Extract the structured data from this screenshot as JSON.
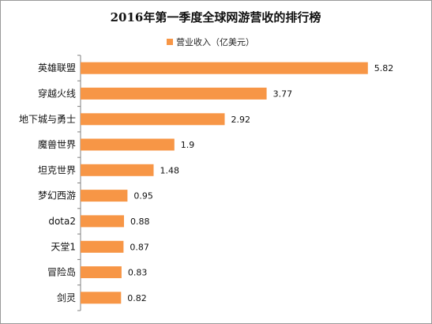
{
  "chart_data": {
    "type": "bar",
    "orientation": "horizontal",
    "title": "2016年第一季度全球网游营收的排行榜",
    "legend_position": "top",
    "series": [
      {
        "name": "营业收入（亿美元）",
        "color": "#F79646",
        "values": [
          5.82,
          3.77,
          2.92,
          1.9,
          1.48,
          0.95,
          0.88,
          0.87,
          0.83,
          0.82
        ]
      }
    ],
    "categories": [
      "英雄联盟",
      "穿越火线",
      "地下城与勇士",
      "魔兽世界",
      "坦克世界",
      "梦幻西游",
      "dota2",
      "天堂1",
      "冒险岛",
      "剑灵"
    ],
    "value_labels": [
      "5.82",
      "3.77",
      "2.92",
      "1.9",
      "1.48",
      "0.95",
      "0.88",
      "0.87",
      "0.83",
      "0.82"
    ],
    "xlim": [
      0,
      6
    ],
    "grid": false
  }
}
